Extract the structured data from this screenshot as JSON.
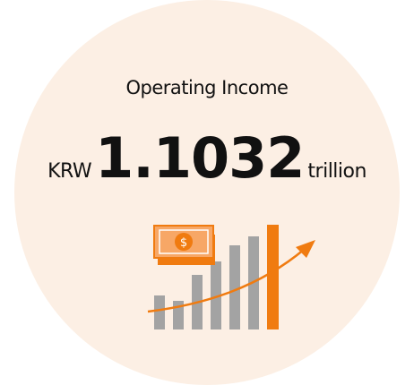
{
  "title": "Operating Income",
  "amount": {
    "prefix": "KRW",
    "value": 1.1032,
    "suffix": "trillion"
  }
}
